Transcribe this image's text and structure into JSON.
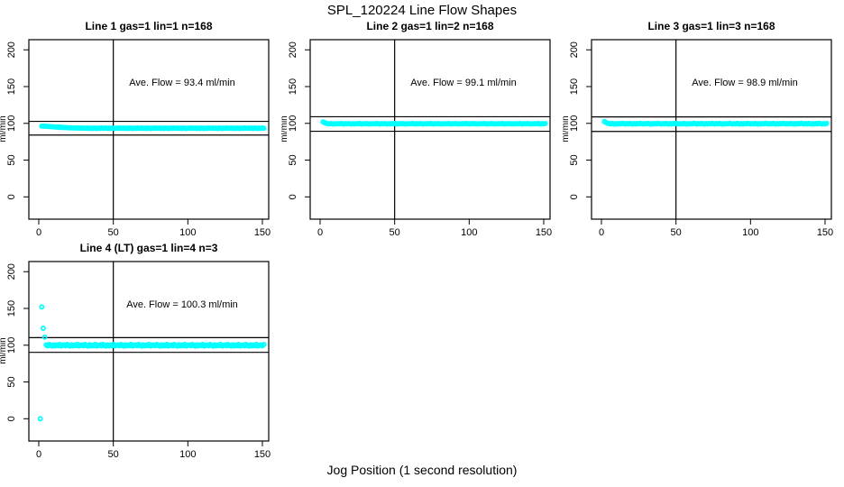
{
  "title": "SPL_120224  Line Flow Shapes",
  "x_axis_label": "Jog Position (1 second resolution)",
  "colors": {
    "points": "#00ffff",
    "axis": "#000000",
    "background": "#ffffff"
  },
  "chart_data": {
    "type": "scatter",
    "title": "SPL_120224  Line Flow Shapes",
    "xlabel": "Jog Position (1 second resolution)",
    "y_axis_label": "ml/min",
    "x_ticks": [
      0,
      50,
      100,
      150
    ],
    "y_ticks": [
      0,
      50,
      100,
      150,
      200
    ],
    "xlim": [
      -6,
      154
    ],
    "ylim": [
      -30,
      214
    ],
    "vline_x": 50,
    "grid": false,
    "legend": "none",
    "panels": [
      {
        "title": "Line 1 gas=1 lin=1 n=168",
        "ave_flow_text": "Ave. Flow =  93.4  ml/min",
        "ave_flow_ml_min": 93.4,
        "hlines": [
          84.1,
          102.7
        ],
        "x_start": 2,
        "x_step": 1,
        "y_values": [
          96.3,
          96.1,
          96.2,
          95.9,
          95.8,
          95.6,
          95.7,
          95.4,
          95.2,
          95.0,
          94.9,
          94.7,
          94.8,
          94.5,
          94.4,
          94.3,
          94.4,
          94.1,
          94.0,
          93.9,
          93.9,
          93.8,
          93.7,
          93.8,
          93.6,
          93.7,
          93.5,
          93.6,
          93.4,
          93.5,
          93.4,
          93.7,
          93.1,
          93.5,
          93.0,
          93.6,
          93.3,
          92.9,
          93.5,
          93.2,
          93.8,
          93.3,
          93.4,
          93.7,
          93.1,
          93.5,
          93.0,
          93.6,
          93.3,
          92.9,
          93.5,
          93.2,
          93.8,
          93.3,
          93.4,
          93.7,
          93.1,
          93.5,
          93.0,
          93.6,
          93.3,
          92.9,
          93.5,
          93.2,
          93.8,
          93.3,
          93.4,
          93.7,
          93.1,
          93.5,
          93.0,
          93.6,
          93.3,
          92.9,
          93.5,
          93.2,
          93.8,
          93.3,
          93.4,
          93.7,
          93.1,
          93.5,
          93.0,
          93.6,
          93.3,
          92.9,
          93.5,
          93.2,
          93.8,
          93.3,
          93.4,
          93.7,
          93.1,
          93.5,
          93.0,
          93.6,
          93.3,
          92.9,
          93.5,
          93.2,
          93.8,
          93.3,
          93.4,
          93.7,
          93.1,
          93.5,
          93.0,
          93.6,
          93.3,
          92.9,
          93.5,
          93.2,
          93.8,
          93.3,
          93.4,
          93.7,
          93.1,
          93.5,
          93.0,
          93.6,
          93.3,
          92.9,
          93.5,
          93.2,
          93.8,
          93.3,
          93.4,
          93.7,
          93.1,
          93.5,
          93.0,
          93.6,
          93.3,
          92.9,
          93.5,
          93.2,
          93.8,
          93.3,
          93.4,
          93.7,
          93.1,
          93.5,
          93.0,
          93.6,
          93.3,
          92.9,
          93.5,
          93.2,
          93.8,
          93.3
        ],
        "extra_points": []
      },
      {
        "title": "Line 2 gas=1 lin=2 n=168",
        "ave_flow_text": "Ave. Flow =  99.1  ml/min",
        "ave_flow_ml_min": 99.1,
        "hlines": [
          89.2,
          109.0
        ],
        "x_start": 2,
        "x_step": 1,
        "y_values": [
          102.0,
          100.8,
          100.2,
          99.6,
          99.3,
          99.8,
          99.4,
          99.0,
          99.5,
          99.2,
          99.7,
          99.3,
          99.9,
          99.4,
          99.1,
          99.6,
          99.3,
          99.8,
          99.4,
          99.0,
          99.5,
          99.2,
          99.7,
          99.3,
          99.9,
          99.4,
          99.1,
          99.6,
          99.3,
          99.8,
          99.4,
          99.0,
          99.5,
          99.2,
          99.7,
          99.3,
          99.9,
          99.4,
          99.1,
          99.6,
          99.3,
          99.8,
          99.4,
          99.0,
          99.5,
          99.2,
          99.7,
          99.3,
          99.9,
          99.4,
          99.1,
          99.6,
          99.3,
          99.8,
          99.4,
          99.0,
          99.5,
          99.2,
          99.7,
          99.3,
          99.9,
          99.4,
          99.1,
          99.6,
          99.3,
          99.8,
          99.4,
          99.0,
          99.5,
          99.2,
          99.7,
          99.3,
          99.9,
          99.4,
          99.1,
          99.6,
          99.3,
          99.8,
          99.4,
          99.0,
          99.5,
          99.2,
          99.7,
          99.3,
          99.9,
          99.4,
          99.1,
          99.6,
          99.3,
          99.8,
          99.4,
          99.0,
          99.5,
          99.2,
          99.7,
          99.3,
          99.9,
          99.4,
          99.1,
          99.6,
          99.3,
          99.8,
          99.4,
          99.0,
          99.5,
          99.2,
          99.7,
          99.3,
          99.9,
          99.4,
          99.1,
          99.6,
          99.3,
          99.8,
          99.4,
          99.0,
          99.5,
          99.2,
          99.7,
          99.3,
          99.9,
          99.4,
          99.1,
          99.6,
          99.3,
          99.8,
          99.4,
          99.0,
          99.5,
          99.2,
          99.7,
          99.3,
          99.9,
          99.4,
          99.1,
          99.6,
          99.3,
          99.8,
          99.4,
          99.0,
          99.5,
          99.2,
          99.7,
          99.3,
          99.9,
          99.4,
          99.1,
          99.6,
          99.3,
          99.8
        ],
        "extra_points": []
      },
      {
        "title": "Line 3 gas=1 lin=3 n=168",
        "ave_flow_text": "Ave. Flow =  98.9  ml/min",
        "ave_flow_ml_min": 98.9,
        "hlines": [
          89.0,
          108.8
        ],
        "x_start": 2,
        "x_step": 1,
        "y_values": [
          102.5,
          101.2,
          100.4,
          99.7,
          99.2,
          100.0,
          99.4,
          98.9,
          99.6,
          99.1,
          99.8,
          99.3,
          100.1,
          99.5,
          99.0,
          99.7,
          99.2,
          100.0,
          99.4,
          98.9,
          99.6,
          99.1,
          99.8,
          99.3,
          100.1,
          99.5,
          99.0,
          99.7,
          99.2,
          100.0,
          99.4,
          98.9,
          99.6,
          99.1,
          99.8,
          99.3,
          100.1,
          99.5,
          99.0,
          99.7,
          99.2,
          100.0,
          99.4,
          98.9,
          99.6,
          99.1,
          99.8,
          99.3,
          100.1,
          99.5,
          99.0,
          99.7,
          99.2,
          100.0,
          99.4,
          98.9,
          99.6,
          99.1,
          99.8,
          99.3,
          100.1,
          99.5,
          99.0,
          99.7,
          99.2,
          100.0,
          99.4,
          98.9,
          99.6,
          99.1,
          99.8,
          99.3,
          100.1,
          99.5,
          99.0,
          99.7,
          99.2,
          100.0,
          99.4,
          98.9,
          99.6,
          99.1,
          99.8,
          99.3,
          100.1,
          99.5,
          99.0,
          99.7,
          99.2,
          100.0,
          99.4,
          98.9,
          99.6,
          99.1,
          99.8,
          99.3,
          100.1,
          99.5,
          99.0,
          99.7,
          99.2,
          100.0,
          99.4,
          98.9,
          99.6,
          99.1,
          99.8,
          99.3,
          100.1,
          99.5,
          99.0,
          99.7,
          99.2,
          100.0,
          99.4,
          98.9,
          99.6,
          99.1,
          99.8,
          99.3,
          100.1,
          99.5,
          99.0,
          99.7,
          99.2,
          100.0,
          99.4,
          98.9,
          99.6,
          99.1,
          99.8,
          99.3,
          100.1,
          99.5,
          99.0,
          99.7,
          99.2,
          100.0,
          99.4,
          98.9,
          99.6,
          99.1,
          99.8,
          99.3,
          100.1,
          99.5,
          99.0,
          99.7,
          99.2,
          100.0
        ],
        "extra_points": []
      },
      {
        "title": "Line 4 (LT) gas=1 lin=4 n=3",
        "ave_flow_text": "Ave. Flow =  100.3  ml/min",
        "ave_flow_ml_min": 100.3,
        "hlines": [
          90.3,
          110.3
        ],
        "x_start": 5,
        "x_step": 1,
        "y_values": [
          100.4,
          99.2,
          101.0,
          99.6,
          98.8,
          100.6,
          99.0,
          100.2,
          99.4,
          101.2,
          98.9,
          99.8,
          100.4,
          99.2,
          101.0,
          99.6,
          98.8,
          100.6,
          99.0,
          100.2,
          99.4,
          101.2,
          98.9,
          99.8,
          100.4,
          99.2,
          101.0,
          99.6,
          98.8,
          100.6,
          99.0,
          100.2,
          99.4,
          101.2,
          98.9,
          99.8,
          100.4,
          99.2,
          101.0,
          99.6,
          98.8,
          100.6,
          99.0,
          100.2,
          99.4,
          101.2,
          98.9,
          99.8,
          100.4,
          99.2,
          101.0,
          99.6,
          98.8,
          100.6,
          99.0,
          100.2,
          99.4,
          101.2,
          98.9,
          99.8,
          100.4,
          99.2,
          101.0,
          99.6,
          98.8,
          100.6,
          99.0,
          100.2,
          99.4,
          101.2,
          98.9,
          99.8,
          100.4,
          99.2,
          101.0,
          99.6,
          98.8,
          100.6,
          99.0,
          100.2,
          99.4,
          101.2,
          98.9,
          99.8,
          100.4,
          99.2,
          101.0,
          99.6,
          98.8,
          100.6,
          99.0,
          100.2,
          99.4,
          101.2,
          98.9,
          99.8,
          100.4,
          99.2,
          101.0,
          99.6,
          98.8,
          100.6,
          99.0,
          100.2,
          99.4,
          101.2,
          98.9,
          99.8,
          100.4,
          99.2,
          101.0,
          99.6,
          98.8,
          100.6,
          99.0,
          100.2,
          99.4,
          101.2,
          98.9,
          99.8,
          100.4,
          99.2,
          101.0,
          99.6,
          98.8,
          100.6,
          99.0,
          100.2,
          99.4,
          101.2,
          98.9,
          99.8,
          100.4,
          99.2,
          101.0,
          99.6,
          98.8,
          100.6,
          99.0,
          100.2,
          99.4,
          101.2,
          98.9,
          99.8,
          100.4,
          99.2,
          101.0
        ],
        "extra_points": [
          [
            1,
            0
          ],
          [
            2,
            152
          ],
          [
            3,
            123
          ],
          [
            4,
            111
          ]
        ]
      }
    ]
  }
}
